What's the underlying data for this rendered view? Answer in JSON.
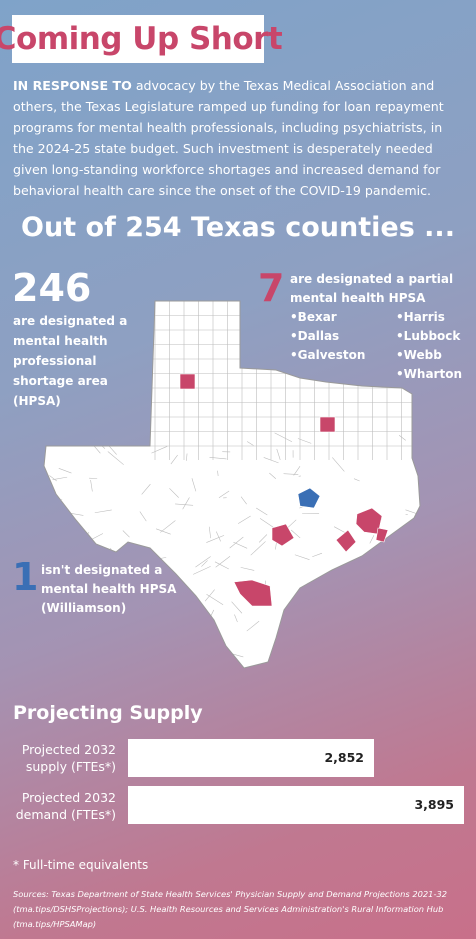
{
  "title": "Coming Up Short",
  "intro": {
    "lead": "IN RESPONSE TO",
    "text": " advocacy by the Texas Medical Association and others, the Texas Legislature ramped up funding for loan repayment programs for mental health professionals, including psychiatrists, in the 2024-25 state budget. Such investment is desperately needed given long-standing workforce shortages and increased demand for behavioral health care since the onset of the COVID-19 pandemic."
  },
  "headline": "Out of 254 Texas counties ...",
  "full_shortage": {
    "count": "246",
    "description": "are designated a mental health professional shortage area (HPSA)"
  },
  "partial_shortage": {
    "count": "7",
    "description": "are designated a partial mental health HPSA",
    "counties": [
      "•Bexar",
      "•Dallas",
      "•Galveston",
      "•Harris",
      "•Lubbock",
      "•Webb",
      "•Wharton"
    ]
  },
  "not_designated": {
    "count": "1",
    "description": "isn't designated a mental health HPSA (Williamson)"
  },
  "colors": {
    "title_text": "#c8466a",
    "partial_hpsa": "#c8466a",
    "not_designated": "#3a6fb5",
    "map_fill": "#ffffff"
  },
  "supply": {
    "title": "Projecting Supply",
    "bars": [
      {
        "label": "Projected 2032 supply (FTEs*)",
        "value": 2852,
        "display": "2,852"
      },
      {
        "label": "Projected 2032 demand (FTEs*)",
        "value": 3895,
        "display": "3,895"
      }
    ]
  },
  "footnote": "* Full-time equivalents",
  "sources": "Sources: Texas Department of State Health Services' Physician Supply and Demand Projections 2021-32 (tma.tips/DSHSProjections); U.S. Health Resources and Services Administration's Rural Information Hub (tma.tips/HPSAMap)"
}
